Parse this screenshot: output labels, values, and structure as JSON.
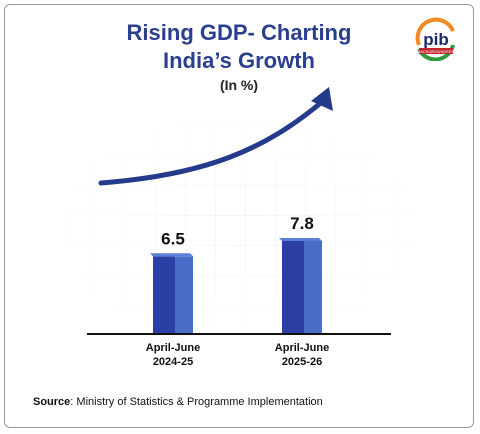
{
  "header": {
    "title_line1": "Rising GDP- Charting",
    "title_line2": "India’s Growth",
    "unit": "(In %)"
  },
  "logo": {
    "icon": "pib-logo-icon",
    "text": "pib",
    "subtext": "BACKGROUNDERS"
  },
  "chart_data": {
    "type": "bar",
    "title": "Rising GDP- Charting India’s Growth",
    "unit": "(In %)",
    "categories": [
      [
        "April-June",
        "2024-25"
      ],
      [
        "April-June",
        "2025-26"
      ]
    ],
    "values": [
      6.5,
      7.8
    ],
    "value_labels": [
      "6.5",
      "7.8"
    ],
    "ylim": [
      0,
      9
    ],
    "grid": true,
    "annotations": [
      "upward-trend-arrow"
    ]
  },
  "source": {
    "label": "Source",
    "text": ": Ministry of Statistics & Programme Implementation"
  },
  "colors": {
    "title": "#2b3f8f",
    "bar_front": "#2b3fa4",
    "bar_side": "#4a6ec8",
    "arrow": "#243a8a",
    "axis": "#111111"
  }
}
